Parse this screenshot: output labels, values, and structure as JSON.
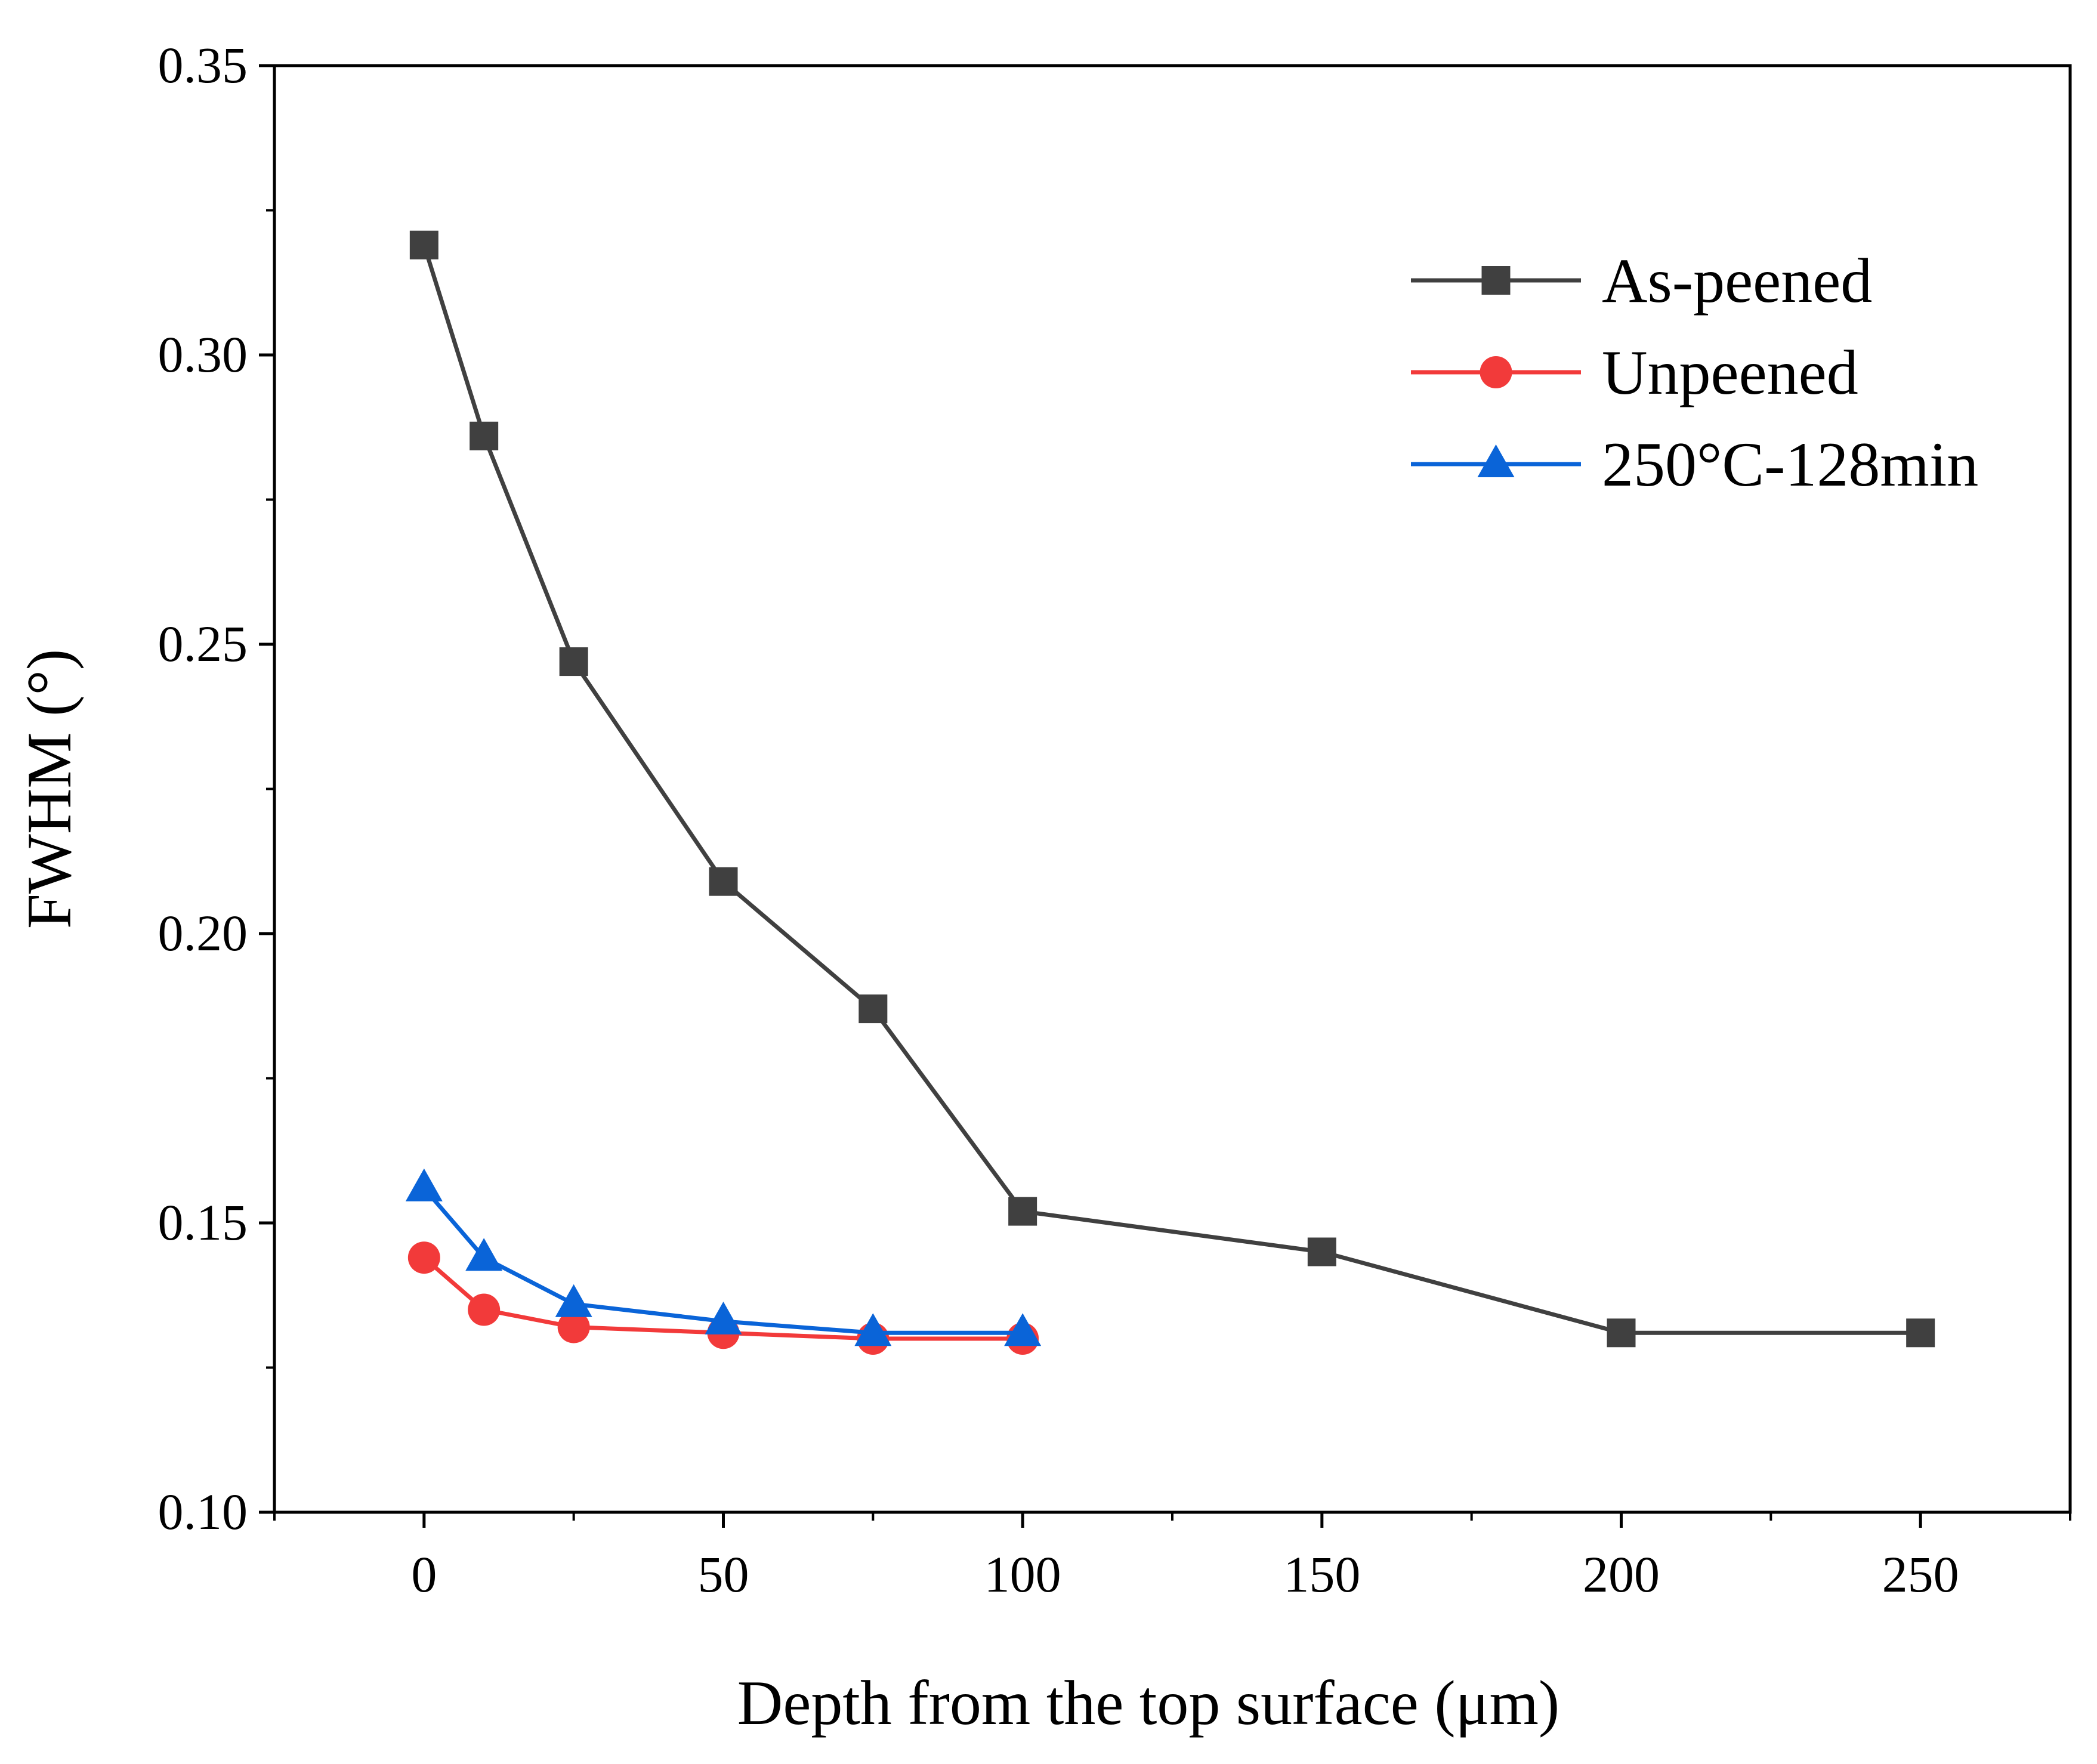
{
  "chart_data": {
    "type": "line",
    "title": "",
    "xlabel": "Depth from the top surface (μm)",
    "ylabel": "FWHM (°)",
    "xlim": [
      -25,
      275
    ],
    "ylim": [
      0.1,
      0.35
    ],
    "xticks": [
      0,
      50,
      100,
      150,
      200,
      250
    ],
    "xtick_labels": [
      "0",
      "50",
      "100",
      "150",
      "200",
      "250"
    ],
    "xminor": [
      -25,
      25,
      75,
      125,
      175,
      225,
      275
    ],
    "yticks": [
      0.1,
      0.15,
      0.2,
      0.25,
      0.3,
      0.35
    ],
    "ytick_labels": [
      "0.10",
      "0.15",
      "0.20",
      "0.25",
      "0.30",
      "0.35"
    ],
    "yminor": [
      0.125,
      0.175,
      0.225,
      0.275,
      0.325
    ],
    "grid": false,
    "legend_position": "top-right",
    "series": [
      {
        "name": "As-peened",
        "color": "#404040",
        "marker": "square",
        "x": [
          0,
          10,
          25,
          50,
          75,
          100,
          150,
          200,
          250
        ],
        "y": [
          0.319,
          0.286,
          0.247,
          0.209,
          0.187,
          0.152,
          0.145,
          0.131,
          0.131
        ]
      },
      {
        "name": "Unpeened",
        "color": "#f23a3a",
        "marker": "circle",
        "x": [
          0,
          10,
          25,
          50,
          75,
          100
        ],
        "y": [
          0.144,
          0.135,
          0.132,
          0.131,
          0.13,
          0.13
        ]
      },
      {
        "name": "250°C-128min",
        "color": "#0a64d8",
        "marker": "triangle",
        "x": [
          0,
          10,
          25,
          50,
          75,
          100
        ],
        "y": [
          0.156,
          0.144,
          0.136,
          0.133,
          0.131,
          0.131
        ]
      }
    ]
  }
}
